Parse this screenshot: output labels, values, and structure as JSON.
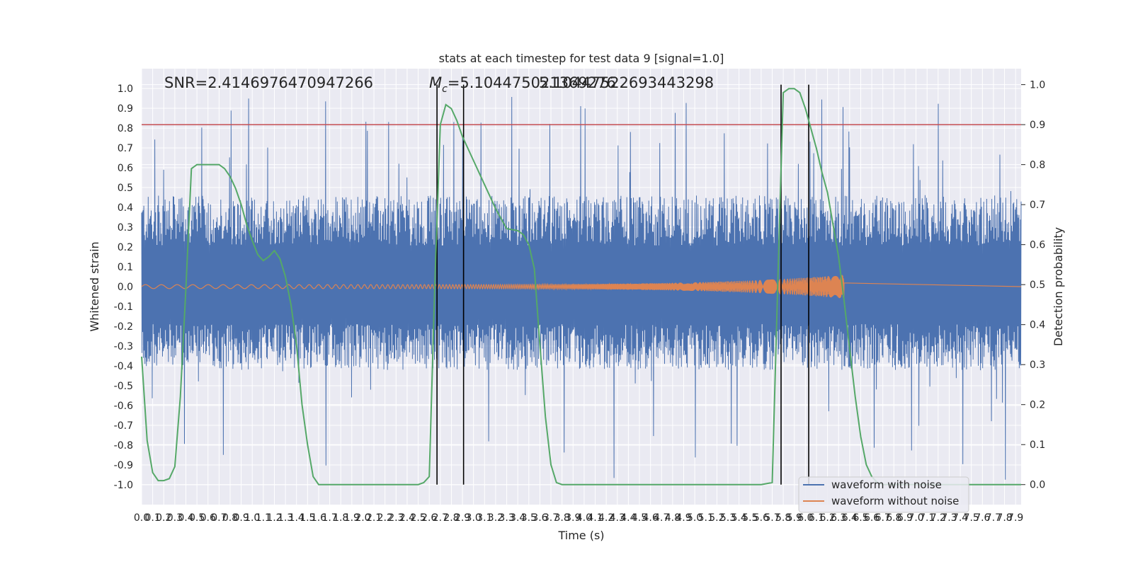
{
  "chart_data": {
    "type": "line",
    "title": "stats at each timestep for test data 9 [signal=1.0]",
    "xlabel": "Time (s)",
    "ylabel": "Whitened strain",
    "y2label": "Detection probability",
    "xlim": [
      0.0,
      7.95
    ],
    "ylim": [
      -1.1,
      1.1
    ],
    "y2lim": [
      -0.05,
      1.04
    ],
    "x_ticks": [
      "0.0",
      "0.1",
      "0.2",
      "0.3",
      "0.4",
      "0.5",
      "0.6",
      "0.7",
      "0.8",
      "0.9",
      "1.0",
      "1.1",
      "1.2",
      "1.3",
      "1.4",
      "1.5",
      "1.6",
      "1.7",
      "1.8",
      "1.9",
      "2.0",
      "2.1",
      "2.2",
      "2.3",
      "2.4",
      "2.5",
      "2.6",
      "2.7",
      "2.8",
      "2.9",
      "3.0",
      "3.1",
      "3.2",
      "3.3",
      "3.4",
      "3.5",
      "3.6",
      "3.7",
      "3.8",
      "3.9",
      "4.0",
      "4.1",
      "4.2",
      "4.3",
      "4.4",
      "4.5",
      "4.6",
      "4.7",
      "4.8",
      "4.9",
      "5.0",
      "5.1",
      "5.2",
      "5.3",
      "5.4",
      "5.5",
      "5.6",
      "5.7",
      "5.8",
      "5.9",
      "6.0",
      "6.1",
      "6.2",
      "6.3",
      "6.4",
      "6.5",
      "6.6",
      "6.7",
      "6.8",
      "6.9",
      "7.0",
      "7.1",
      "7.2",
      "7.3",
      "7.4",
      "7.5",
      "7.6",
      "7.7",
      "7.8",
      "7.9"
    ],
    "y_ticks": [
      "-1.0",
      "-0.9",
      "-0.8",
      "-0.7",
      "-0.6",
      "-0.5",
      "-0.4",
      "-0.3",
      "-0.2",
      "-0.1",
      "0.0",
      "0.1",
      "0.2",
      "0.3",
      "0.4",
      "0.5",
      "0.6",
      "0.7",
      "0.8",
      "0.9",
      "1.0"
    ],
    "y2_ticks": [
      "0.0",
      "0.1",
      "0.2",
      "0.3",
      "0.4",
      "0.5",
      "0.6",
      "0.7",
      "0.8",
      "0.9",
      "1.0"
    ],
    "annotations": {
      "snr": "SNR=2.4146976470947266",
      "mc_symbol": "M",
      "mc_sub": "c",
      "mc_value": "=5.104475021369276",
      "mc_overlap": "5.10447522693443298"
    },
    "threshold": {
      "value": 0.9,
      "axis": "right",
      "color": "#c44e52"
    },
    "vertical_lines": [
      2.67,
      2.91,
      5.78,
      6.03
    ],
    "legend": {
      "location": "lower-right",
      "entries": [
        "waveform with noise",
        "waveform without noise"
      ]
    },
    "series": [
      {
        "name": "waveform with noise",
        "color": "#4c72b0",
        "render": "dense noise band",
        "band_typical": [
          -0.42,
          0.46
        ],
        "spike_extremes": {
          "max": 0.97,
          "min": -0.99
        }
      },
      {
        "name": "waveform without noise",
        "color": "#dd8452",
        "render": "chirp oscillation",
        "x_range": [
          0.0,
          6.35
        ],
        "amp_start": 0.01,
        "amp_end": 0.06
      },
      {
        "name": "detection probability",
        "axis": "right",
        "color": "#55a868",
        "x": [
          0.0,
          0.05,
          0.1,
          0.15,
          0.2,
          0.25,
          0.3,
          0.35,
          0.4,
          0.45,
          0.5,
          0.55,
          0.6,
          0.65,
          0.7,
          0.75,
          0.8,
          0.85,
          0.9,
          0.95,
          1.0,
          1.05,
          1.1,
          1.15,
          1.2,
          1.25,
          1.3,
          1.35,
          1.4,
          1.45,
          1.5,
          1.55,
          1.6,
          1.65,
          1.7,
          1.75,
          1.8,
          1.85,
          1.9,
          1.95,
          2.0,
          2.1,
          2.2,
          2.3,
          2.4,
          2.5,
          2.55,
          2.6,
          2.65,
          2.7,
          2.75,
          2.8,
          2.85,
          2.9,
          2.95,
          3.0,
          3.1,
          3.2,
          3.3,
          3.4,
          3.45,
          3.5,
          3.55,
          3.6,
          3.65,
          3.7,
          3.75,
          3.8,
          3.85,
          3.9,
          3.95,
          4.0,
          4.05,
          4.1,
          4.2,
          4.4,
          4.6,
          4.8,
          5.0,
          5.2,
          5.4,
          5.6,
          5.7,
          5.75,
          5.8,
          5.85,
          5.9,
          5.95,
          6.0,
          6.05,
          6.1,
          6.15,
          6.2,
          6.25,
          6.3,
          6.35,
          6.4,
          6.45,
          6.5,
          6.55,
          6.6,
          6.65,
          6.7,
          6.75,
          6.8,
          6.9,
          7.0,
          7.2,
          7.5,
          7.8,
          7.95
        ],
        "y": [
          0.32,
          0.11,
          0.03,
          0.01,
          0.01,
          0.015,
          0.045,
          0.22,
          0.49,
          0.79,
          0.8,
          0.8,
          0.8,
          0.8,
          0.8,
          0.79,
          0.77,
          0.74,
          0.7,
          0.65,
          0.61,
          0.575,
          0.56,
          0.57,
          0.585,
          0.565,
          0.52,
          0.45,
          0.35,
          0.2,
          0.1,
          0.02,
          0.0,
          0.0,
          0.0,
          0.0,
          0.0,
          0.0,
          0.0,
          0.0,
          0.0,
          0.0,
          0.0,
          0.0,
          0.0,
          0.0,
          0.005,
          0.02,
          0.5,
          0.9,
          0.95,
          0.94,
          0.91,
          0.87,
          0.84,
          0.81,
          0.75,
          0.69,
          0.64,
          0.635,
          0.625,
          0.6,
          0.54,
          0.35,
          0.17,
          0.05,
          0.005,
          0.0,
          0.0,
          0.0,
          0.0,
          0.0,
          0.0,
          0.0,
          0.0,
          0.0,
          0.0,
          0.0,
          0.0,
          0.0,
          0.0,
          0.0,
          0.005,
          0.5,
          0.98,
          0.99,
          0.99,
          0.98,
          0.94,
          0.89,
          0.84,
          0.78,
          0.73,
          0.65,
          0.57,
          0.46,
          0.34,
          0.22,
          0.12,
          0.05,
          0.02,
          0.005,
          0.0,
          0.0,
          0.0,
          0.0,
          0.0,
          0.0,
          0.0,
          0.0,
          0.0
        ]
      }
    ]
  }
}
